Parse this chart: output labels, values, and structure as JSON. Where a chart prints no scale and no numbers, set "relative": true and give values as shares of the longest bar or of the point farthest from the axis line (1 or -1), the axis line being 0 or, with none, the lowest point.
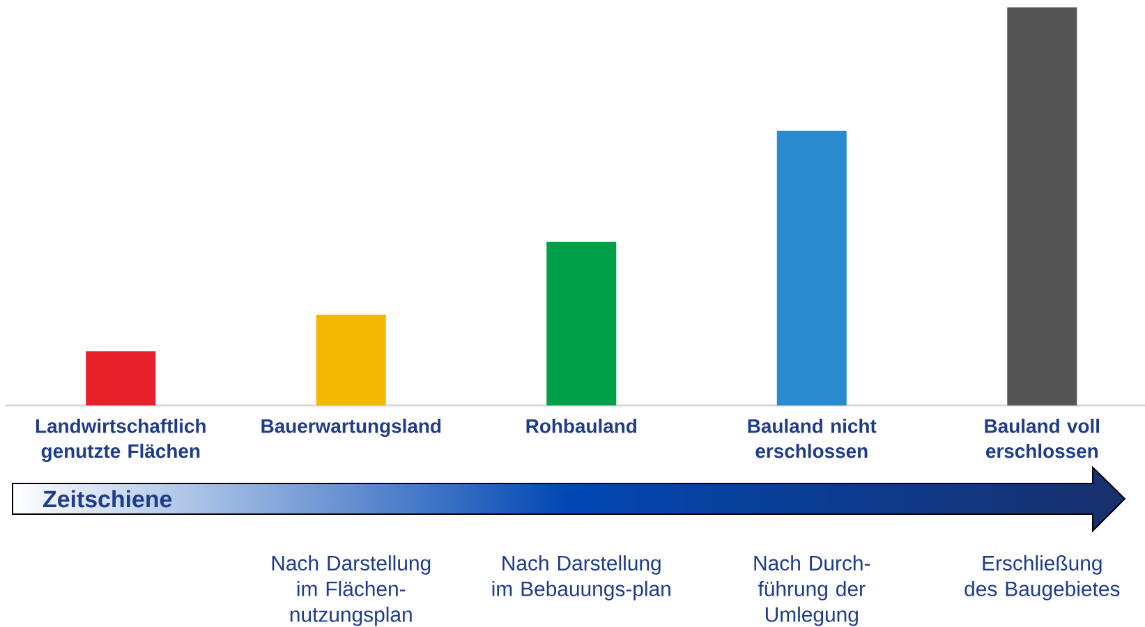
{
  "chart_data": {
    "type": "bar",
    "relative": true,
    "categories": [
      "Landwirtschaftlich genutzte Flächen",
      "Bauerwartungsland",
      "Rohbauland",
      "Bauland nicht erschlossen",
      "Bauland voll erschlossen"
    ],
    "values": [
      0.136,
      0.228,
      0.411,
      0.69,
      1
    ],
    "colors": [
      "#e8202a",
      "#f5b800",
      "#00a04a",
      "#2a8ad0",
      "#555555"
    ],
    "annotations": [
      "Zeitschiene",
      "Nach Darstellung im Flächen-nutzungsplan",
      "Nach Darstellung im Bebauungs-plan",
      "Nach Durch-führung der Umlegung",
      "Erschließung des Baugebietes"
    ]
  }
}
